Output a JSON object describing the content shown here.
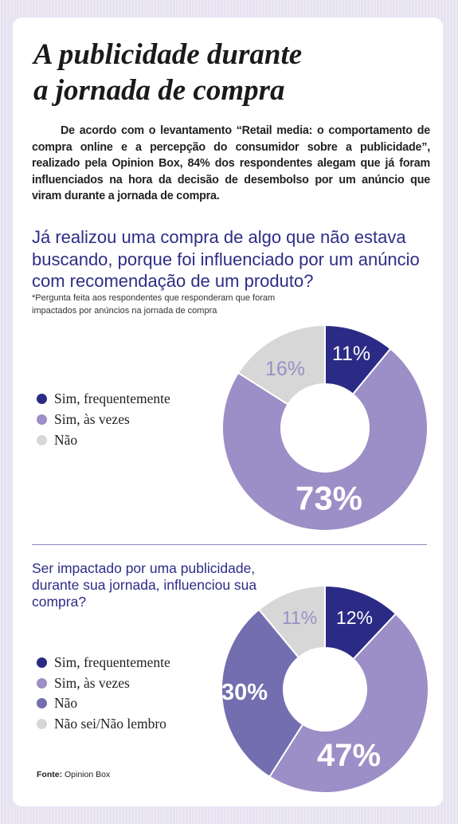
{
  "title_line1": "A publicidade durante",
  "title_line2": "a jornada de compra",
  "intro": "De acordo com o levantamento “Retail media: o comportamento de compra online e a percepção do consumidor sobre a publicidade”, realizado pela Opinion Box, 84% dos respondentes alegam que já foram influenciados na hora da decisão de desembolso por um anúncio que viram durante a jornada de compra.",
  "colors": {
    "sim_frequentemente": "#2b2b86",
    "sim_as_vezes": "#9c8ec6",
    "nao_chart1": "#d7d7d7",
    "nao_chart2": "#736eb0",
    "nao_sei": "#d7d7d7",
    "title_blue": "#2e2d86"
  },
  "chart1": {
    "question": "Já realizou uma compra de algo que não estava buscando, porque foi influenciado por um anúncio com recomendação de um produto?",
    "note": "*Pergunta feita aos respondentes que responderam que foram impactados por anúncios na jornada de compra"
  },
  "chart2": {
    "question": "Ser impactado por uma publicidade, durante sua jornada, influenciou sua compra?"
  },
  "source_label": "Fonte:",
  "source_value": "Opinion Box",
  "chart_data": [
    {
      "type": "pie",
      "title": "Já realizou uma compra de algo que não estava buscando, porque foi influenciado por um anúncio com recomendação de um produto?",
      "categories": [
        "Sim, frequentemente",
        "Sim, às vezes",
        "Não"
      ],
      "values": [
        11,
        73,
        16
      ],
      "labels": [
        "11%",
        "73%",
        "16%"
      ],
      "colors": [
        "#2b2b86",
        "#9c8ec6",
        "#d7d7d7"
      ],
      "label_colors": [
        "#ffffff",
        "#ffffff",
        "#9c8ec6"
      ],
      "donut": true,
      "legend": "left"
    },
    {
      "type": "pie",
      "title": "Ser impactado por uma publicidade, durante sua jornada, influenciou sua compra?",
      "categories": [
        "Sim, frequentemente",
        "Sim, às vezes",
        "Não",
        "Não sei/Não lembro"
      ],
      "values": [
        12,
        47,
        30,
        11
      ],
      "labels": [
        "12%",
        "47%",
        "30%",
        "11%"
      ],
      "colors": [
        "#2b2b86",
        "#9c8ec6",
        "#736eb0",
        "#d7d7d7"
      ],
      "label_colors": [
        "#ffffff",
        "#ffffff",
        "#ffffff",
        "#9c8ec6"
      ],
      "donut": true,
      "legend": "left"
    }
  ]
}
